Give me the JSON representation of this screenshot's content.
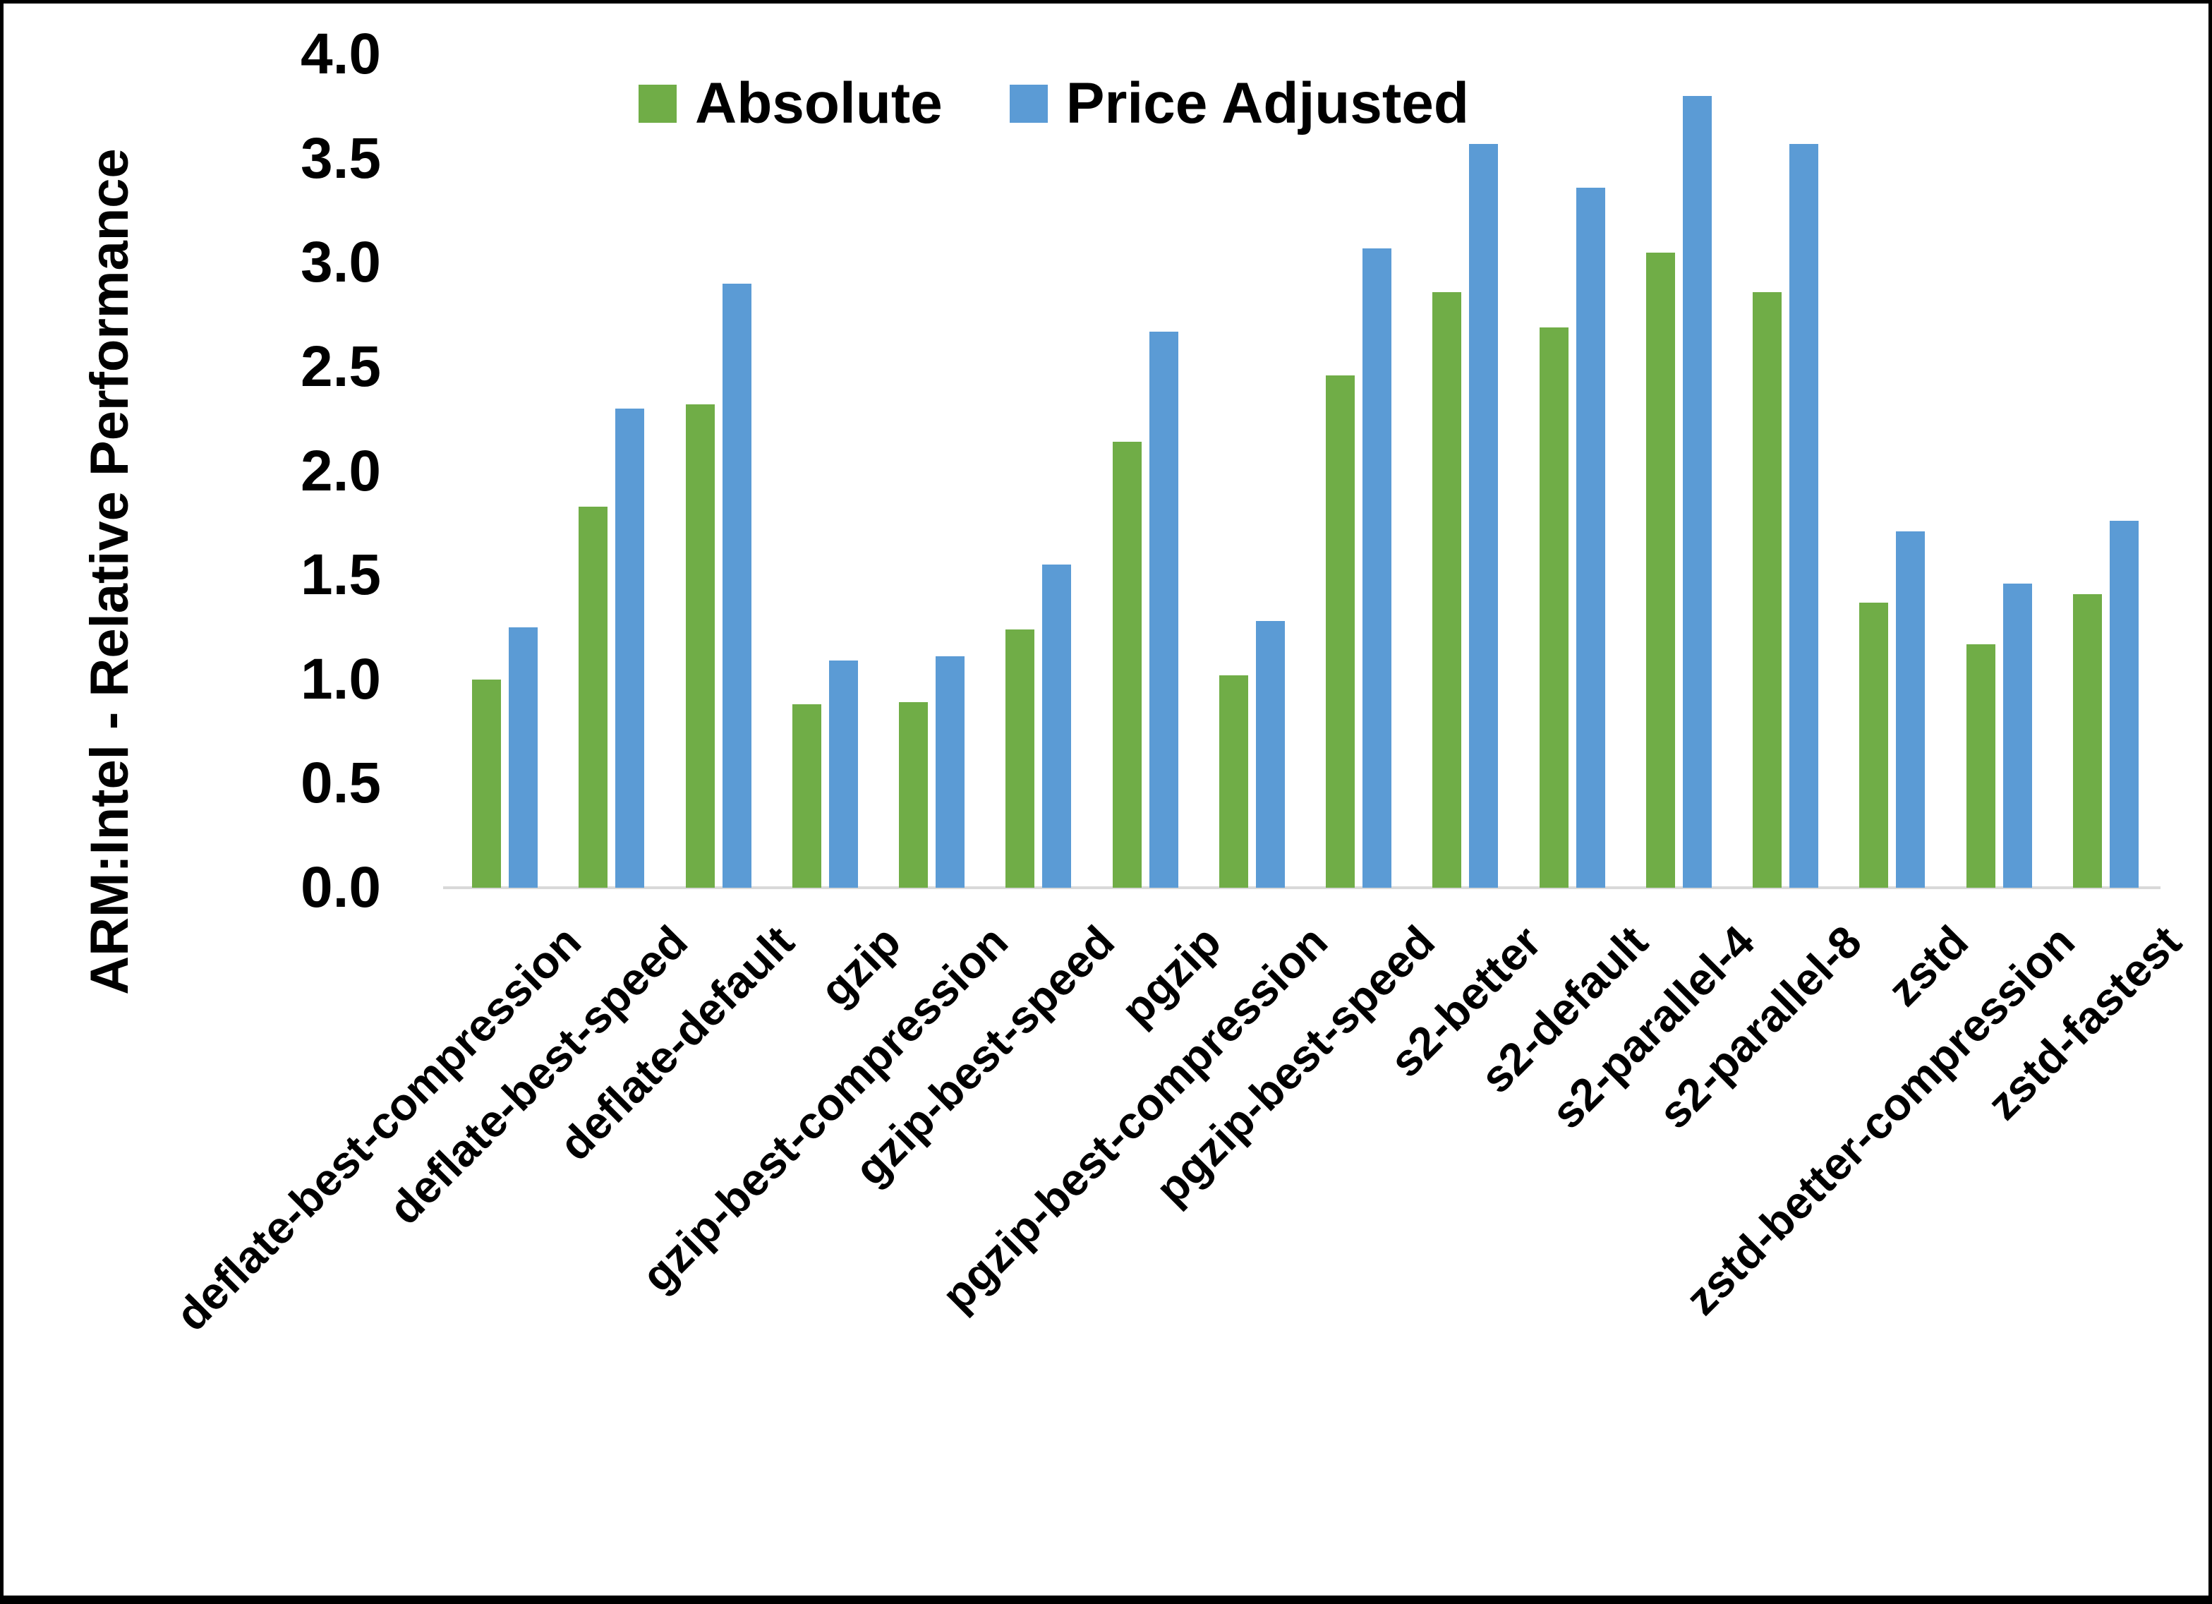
{
  "chart_data": {
    "type": "bar",
    "title": "",
    "xlabel": "",
    "ylabel": "ARM:Intel - Relative Performance",
    "ylim": [
      0.0,
      4.0
    ],
    "ytick_labels": [
      "0.0",
      "0.5",
      "1.0",
      "1.5",
      "2.0",
      "2.5",
      "3.0",
      "3.5",
      "4.0"
    ],
    "grid": "off",
    "legend_position": "top-center",
    "axis_line_color": "#d9d9d9",
    "text_color": "#000000",
    "categories": [
      "deflate-best-compression",
      "deflate-best-speed",
      "deflate-default",
      "gzip",
      "gzip-best-compression",
      "gzip-best-speed",
      "pgzip",
      "pgzip-best-compression",
      "pgzip-best-speed",
      "s2-better",
      "s2-default",
      "s2-parallel-4",
      "s2-parallel-8",
      "zstd",
      "zstd-better-compression",
      "zstd-fastest"
    ],
    "series": [
      {
        "name": "Absolute",
        "color": "#70AD47",
        "values": [
          1.0,
          1.83,
          2.32,
          0.88,
          0.89,
          1.24,
          2.14,
          1.02,
          2.46,
          2.86,
          2.69,
          3.05,
          2.86,
          1.37,
          1.17,
          1.41
        ]
      },
      {
        "name": "Price Adjusted",
        "color": "#5B9BD5",
        "values": [
          1.25,
          2.3,
          2.9,
          1.09,
          1.11,
          1.55,
          2.67,
          1.28,
          3.07,
          3.57,
          3.36,
          3.8,
          3.57,
          1.71,
          1.46,
          1.76
        ]
      }
    ]
  }
}
